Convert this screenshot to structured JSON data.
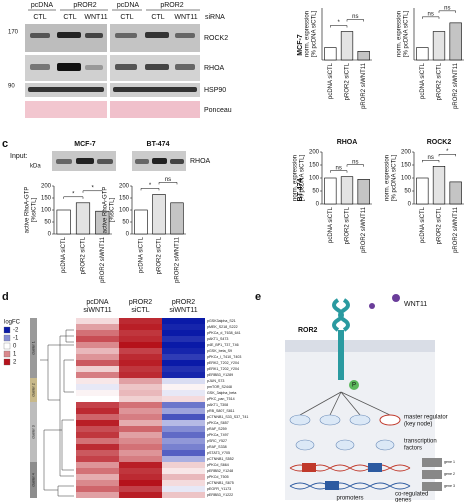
{
  "panel_a": {
    "groups": [
      "pcDNA",
      "pROR2",
      "pcDNA",
      "pROR2"
    ],
    "sirna": [
      "CTL",
      "CTL",
      "WNT11",
      "CTL",
      "CTL",
      "WNT11"
    ],
    "sirna_label": "siRNA",
    "markers": [
      170,
      90
    ],
    "rows": [
      "ROCK2",
      "RHOA",
      "HSP90",
      "Ponceau"
    ]
  },
  "panel_b": {
    "cell_lines": [
      "MCF-7",
      "BT-474"
    ]
  },
  "panel_c": {
    "letter": "c",
    "input": "Input:",
    "kda": "kDa",
    "blot_titles": [
      "MCF-7",
      "BT-474"
    ],
    "blot_label": "RHOA"
  },
  "charts": [
    {
      "type": "bar",
      "ylabel": [
        "norm. expression",
        "[% pcDNA siCTL]"
      ],
      "categories": [
        "pcDNA siCTL",
        "pROR2 siCTL",
        "pROR2 siWNT11"
      ],
      "values": [
        100,
        230,
        70
      ],
      "ylim": [
        0,
        420
      ],
      "annotations": [
        "*",
        "ns"
      ]
    },
    {
      "type": "bar",
      "ylabel": [
        "norm. expression",
        "[% pcDNA siCTL]"
      ],
      "categories": [
        "pcDNA siCTL",
        "pROR2 siCTL",
        "pROR2 siWNT11"
      ],
      "values": [
        100,
        230,
        300
      ],
      "ylim": [
        0,
        420
      ],
      "annotations": [
        "ns",
        "ns"
      ]
    },
    {
      "type": "bar",
      "title": "RHOA",
      "ylabel": [
        "norm. expression",
        "[% pcDNA siCTL]"
      ],
      "categories": [
        "pcDNA siCTL",
        "pROR2 siCTL",
        "pROR2 siWNT11"
      ],
      "values": [
        100,
        105,
        95
      ],
      "ylim": [
        0,
        200
      ],
      "yticks": [
        0,
        50,
        100,
        150,
        200
      ],
      "annotations": [
        "ns",
        "ns"
      ]
    },
    {
      "type": "bar",
      "title": "ROCK2",
      "ylabel": [
        "norm. expression",
        "[% pcDNA siCTL]"
      ],
      "categories": [
        "pcDNA siCTL",
        "pROR2 siCTL",
        "pROR2 siWNT11"
      ],
      "values": [
        100,
        145,
        85
      ],
      "ylim": [
        0,
        200
      ],
      "yticks": [
        0,
        50,
        100,
        150,
        200
      ],
      "annotations": [
        "ns",
        "*"
      ]
    },
    {
      "type": "bar",
      "ylabel": [
        "active RhoA-GTP",
        "[%siCTL]"
      ],
      "categories": [
        "pcDNA siCTL",
        "pROR2 siCTL",
        "pROR2 siWNT11"
      ],
      "values": [
        100,
        130,
        95
      ],
      "ylim": [
        0,
        200
      ],
      "yticks": [
        0,
        50,
        100,
        150,
        200
      ],
      "annotations": [
        "*",
        "*"
      ]
    },
    {
      "type": "bar",
      "ylabel": [
        "active RhoA-GTP",
        "[%siCTL]"
      ],
      "categories": [
        "pcDNA siCTL",
        "pROR2 siCTL",
        "pROR2 siWNT11"
      ],
      "values": [
        100,
        165,
        130
      ],
      "ylim": [
        0,
        200
      ],
      "yticks": [
        0,
        50,
        100,
        150,
        200
      ],
      "annotations": [
        "*",
        "ns"
      ]
    }
  ],
  "heatmap": {
    "letter": "d",
    "columns": [
      [
        "pcDNA",
        "siWNT11"
      ],
      [
        "pROR2",
        "siCTL"
      ],
      [
        "pROR2",
        "siWNT11"
      ]
    ],
    "legend_title": "logFC",
    "legend_ticks": [
      -2,
      -1,
      0,
      1,
      2
    ],
    "colorscale": [
      "#0a1aa8",
      "#ffffff",
      "#b5121b"
    ],
    "clusters": [
      "cluster 1",
      "cluster 2",
      "cluster 3",
      "cluster 4"
    ],
    "rows": [
      "pGSK3alpha_S21",
      "pMEK_S218_S222",
      "pPKCa_d_T638_641",
      "pAKT1_S473",
      "p4E_BP1_T37_T46",
      "pGSK_beta_S9",
      "pPKCz_l_T410_T403",
      "pERK2_T202_Y204",
      "pERK1_T202_Y204",
      "pERBB3_Y1289",
      "pJUN_S73",
      "pmTOR_S2448",
      "GSK_3alpha_beta",
      "pPKC_pan_T514",
      "pAKT1_T308",
      "pRB_S807_S811",
      "pCTNNB1_S33_S37_T41",
      "pPKCa_S657",
      "pRAF_S259",
      "pPKCa_T497",
      "pSRC_Y527",
      "pRAF_S338",
      "pSTAT3_Y705",
      "pCTNNB1_S552",
      "pPKCd_S664",
      "pERBB2_Y1248",
      "pPKCd_T505",
      "pCTNNB1_S675",
      "pEGFR_Y1173",
      "pERBB3_Y1222"
    ],
    "values": [
      [
        0.3,
        1.8,
        -2
      ],
      [
        0.8,
        1.9,
        -1.9
      ],
      [
        1.2,
        1.7,
        -2
      ],
      [
        1.5,
        1.8,
        -1.8
      ],
      [
        1.0,
        2,
        -2
      ],
      [
        0.6,
        1.6,
        -1.9
      ],
      [
        0.9,
        1.8,
        -1.7
      ],
      [
        1.4,
        1.9,
        -2
      ],
      [
        0.4,
        1.7,
        -1.8
      ],
      [
        1.1,
        1.8,
        -1.9
      ],
      [
        0.2,
        0.8,
        -0.3
      ],
      [
        -0.2,
        0.5,
        0.1
      ],
      [
        0.1,
        0.6,
        -0.2
      ],
      [
        0,
        0.4,
        0.3
      ],
      [
        1.6,
        1.2,
        -1.2
      ],
      [
        1.8,
        0.9,
        -0.8
      ],
      [
        1.3,
        1.1,
        -1.5
      ],
      [
        1.9,
        0.7,
        -0.6
      ],
      [
        1.5,
        1.3,
        -1
      ],
      [
        1.7,
        0.8,
        -1.3
      ],
      [
        1.2,
        1.0,
        -0.9
      ],
      [
        1.8,
        1.2,
        -1.1
      ],
      [
        1.4,
        0.9,
        -1.4
      ],
      [
        1.6,
        1.1,
        -0.7
      ],
      [
        0.9,
        1.9,
        0.4
      ],
      [
        1.2,
        1.7,
        0.2
      ],
      [
        0.7,
        1.8,
        0.6
      ],
      [
        1.0,
        2,
        0.3
      ],
      [
        1.3,
        1.6,
        -0.2
      ],
      [
        0.8,
        1.9,
        0.5
      ]
    ]
  },
  "panel_e": {
    "letter": "e",
    "receptor": "ROR2",
    "ligand": "WNT11",
    "phospho": "P",
    "master": [
      "master regulator",
      "(key node)"
    ],
    "tf": [
      "transcription",
      "factors"
    ],
    "genes_label": [
      "co-regulated",
      "genes"
    ],
    "promoters": "promoters",
    "genes": [
      "gene 1",
      "gene 2",
      "gene 3"
    ]
  }
}
